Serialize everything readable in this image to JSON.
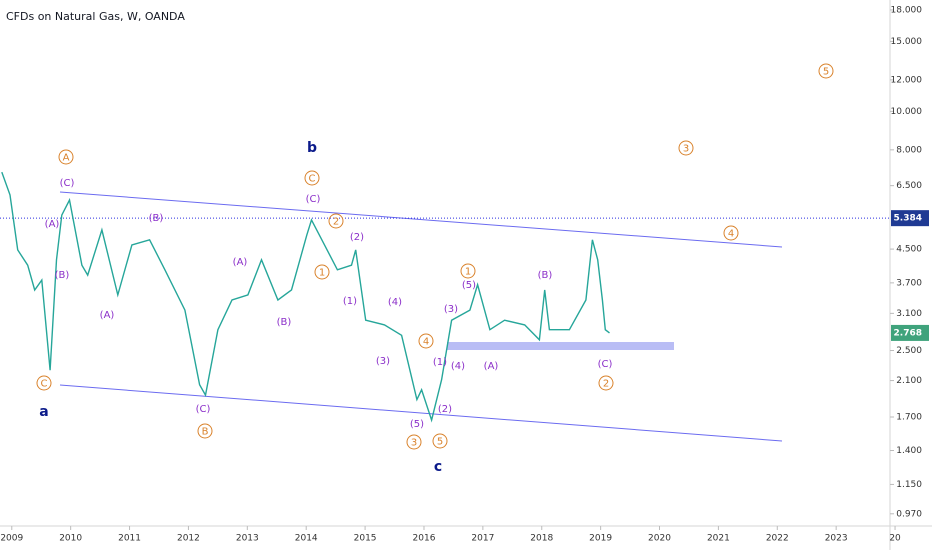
{
  "chart_data": {
    "type": "line",
    "title": "CFDs on Natural Gas, W, OANDA",
    "x": [
      2008.83,
      2008.97,
      2009.1,
      2009.27,
      2009.39,
      2009.51,
      2009.65,
      2009.76,
      2009.85,
      2009.98,
      2010.19,
      2010.29,
      2010.53,
      2010.8,
      2011.04,
      2011.34,
      2011.6,
      2011.94,
      2012.19,
      2012.29,
      2012.5,
      2012.74,
      2013.01,
      2013.24,
      2013.52,
      2013.75,
      2014.01,
      2014.09,
      2014.31,
      2014.53,
      2014.77,
      2014.84,
      2015.01,
      2015.33,
      2015.62,
      2015.88,
      2015.96,
      2016.13,
      2016.3,
      2016.47,
      2016.78,
      2016.91,
      2017.12,
      2017.37,
      2017.71,
      2017.96,
      2018.05,
      2018.13,
      2018.47,
      2018.75,
      2018.86,
      2018.95,
      2019.03,
      2019.08,
      2019.15
    ],
    "values": [
      7.03,
      6.16,
      4.48,
      4.1,
      3.55,
      3.76,
      2.23,
      4.23,
      5.48,
      5.98,
      4.1,
      3.87,
      5.03,
      3.45,
      4.61,
      4.75,
      3.99,
      3.16,
      2.05,
      1.93,
      2.82,
      3.35,
      3.45,
      4.23,
      3.35,
      3.55,
      4.88,
      5.33,
      4.61,
      3.99,
      4.1,
      4.48,
      2.98,
      2.9,
      2.73,
      1.88,
      1.99,
      1.67,
      2.11,
      2.98,
      3.16,
      3.66,
      2.82,
      2.98,
      2.9,
      2.66,
      3.55,
      2.82,
      2.82,
      3.35,
      4.75,
      4.23,
      3.35,
      2.82,
      2.768
    ],
    "color": "#26a69a",
    "log_scale": true,
    "xlim": [
      2008.8,
      2024.05
    ],
    "xticks": [
      2009,
      2010,
      2011,
      2012,
      2013,
      2014,
      2015,
      2016,
      2017,
      2018,
      2019,
      2020,
      2021,
      2022,
      2023,
      {
        "value": 2024,
        "label": "20"
      }
    ],
    "ylim": [
      0.909,
      19.07
    ],
    "yticks": [
      {
        "value": 0.97,
        "label": "0.970"
      },
      {
        "value": 1.15,
        "label": "1.150"
      },
      {
        "value": 1.4,
        "label": "1.400"
      },
      {
        "value": 1.7,
        "label": "1.700"
      },
      {
        "value": 2.1,
        "label": "2.100"
      },
      {
        "value": 2.5,
        "label": "2.500"
      },
      {
        "value": 3.1,
        "label": "3.100"
      },
      {
        "value": 3.7,
        "label": "3.700"
      },
      {
        "value": 4.5,
        "label": "4.500"
      },
      {
        "value": 6.5,
        "label": "6.500"
      },
      {
        "value": 8,
        "label": "8.000"
      },
      {
        "value": 10,
        "label": "10.000"
      },
      {
        "value": 12,
        "label": "12.000"
      },
      {
        "value": 15,
        "label": "15.000"
      },
      {
        "value": 18,
        "label": "18.000"
      }
    ],
    "marker_line": {
      "value": 5.384,
      "label": "5.384"
    },
    "current_price": {
      "value": 2.768,
      "label": "2.768"
    },
    "circled_labels": [
      "A",
      "C",
      "C",
      "2",
      "1",
      "4",
      "3",
      "5",
      "1",
      "3",
      "5",
      "4",
      "2",
      "B"
    ],
    "paren_labels": [
      "(C)",
      "(A)",
      "(B)",
      "(A)",
      "(B)",
      "(A)",
      "(B)",
      "(C)",
      "(C)",
      "(2)",
      "(1)",
      "(4)",
      "(3)",
      "(5)",
      "(1)",
      "(2)",
      "(4)",
      "(3)",
      "(5)",
      "(A)",
      "(B)",
      "(C)"
    ],
    "wave_labels": [
      "a",
      "b",
      "c"
    ]
  }
}
